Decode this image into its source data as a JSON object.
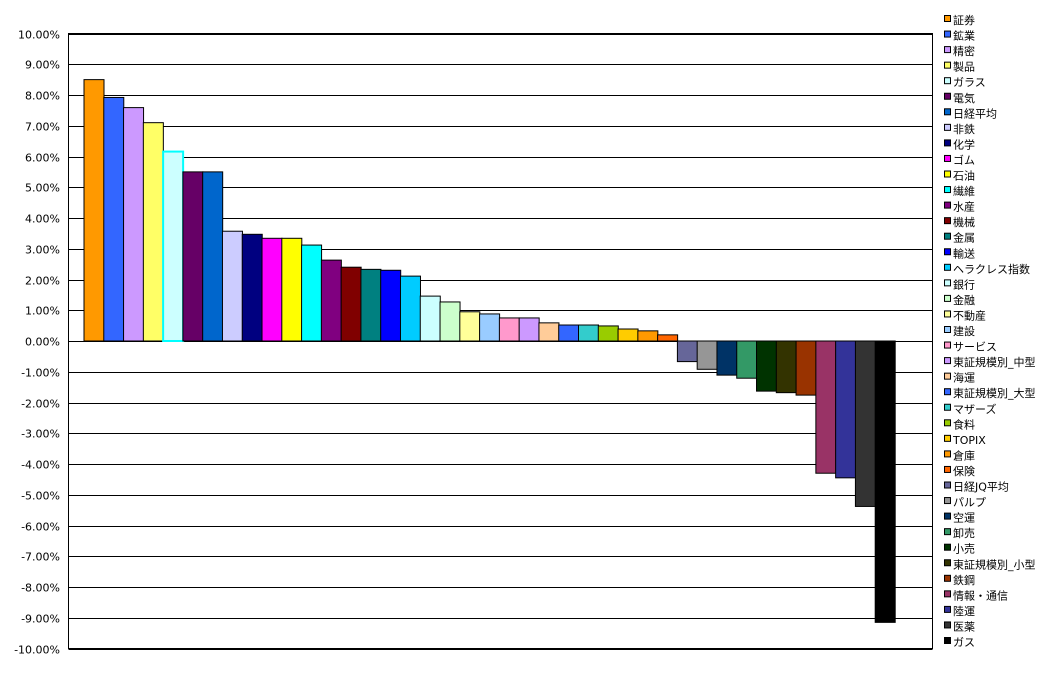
{
  "chart_data": {
    "type": "bar",
    "title": "",
    "xlabel": "",
    "ylabel": "",
    "ylim": [
      -10,
      10
    ],
    "y_tick_step": 1,
    "y_tick_format": "percent-2dp",
    "y_ticks": [
      "10.00%",
      "9.00%",
      "8.00%",
      "7.00%",
      "6.00%",
      "5.00%",
      "4.00%",
      "3.00%",
      "2.00%",
      "1.00%",
      "0.00%",
      "-1.00%",
      "-2.00%",
      "-3.00%",
      "-4.00%",
      "-5.00%",
      "-6.00%",
      "-7.00%",
      "-8.00%",
      "-9.00%",
      "-10.00%"
    ],
    "grid": true,
    "legend": "right",
    "categories": [
      "証券",
      "鉱業",
      "精密",
      "製品",
      "ガラス",
      "電気",
      "日経平均",
      "非鉄",
      "化学",
      "ゴム",
      "石油",
      "繊維",
      "水産",
      "機械",
      "金属",
      "輸送",
      "ヘラクレス指数",
      "銀行",
      "金融",
      "不動産",
      "建設",
      "サービス",
      "東証規模別_中型",
      "海運",
      "東証規模別_大型",
      "マザーズ",
      "食料",
      "TOPIX",
      "倉庫",
      "保険",
      "日経JQ平均",
      "パルプ",
      "空運",
      "卸売",
      "小売",
      "東証規模別_小型",
      "鉄鋼",
      "情報・通信",
      "陸運",
      "医薬",
      "ガス"
    ],
    "values": [
      8.5,
      7.92,
      7.59,
      7.1,
      6.16,
      5.5,
      5.5,
      3.57,
      3.47,
      3.34,
      3.34,
      3.12,
      2.63,
      2.4,
      2.33,
      2.3,
      2.11,
      1.46,
      1.27,
      0.95,
      0.88,
      0.75,
      0.75,
      0.59,
      0.52,
      0.52,
      0.49,
      0.39,
      0.33,
      0.2,
      -0.67,
      -0.92,
      -1.11,
      -1.21,
      -1.63,
      -1.68,
      -1.76,
      -4.3,
      -4.45,
      -5.38,
      -9.15
    ],
    "colors": [
      "#FF9900",
      "#3366FF",
      "#CC99FF",
      "#FFFF66",
      "#CCFFFF",
      "#660066",
      "#0066CC",
      "#CCCCFF",
      "#000080",
      "#FF00FF",
      "#FFFF00",
      "#00FFFF",
      "#800080",
      "#800000",
      "#008080",
      "#0000FF",
      "#00CCFF",
      "#CCFFFF",
      "#CCFFCC",
      "#FFFF99",
      "#99CCFF",
      "#FF99CC",
      "#CC99FF",
      "#FFCC99",
      "#3366FF",
      "#33CCCC",
      "#99CC00",
      "#FFCC00",
      "#FF9900",
      "#FF6600",
      "#666699",
      "#969696",
      "#003366",
      "#339966",
      "#003300",
      "#333300",
      "#993300",
      "#993366",
      "#333399",
      "#333333",
      "#000000"
    ]
  }
}
